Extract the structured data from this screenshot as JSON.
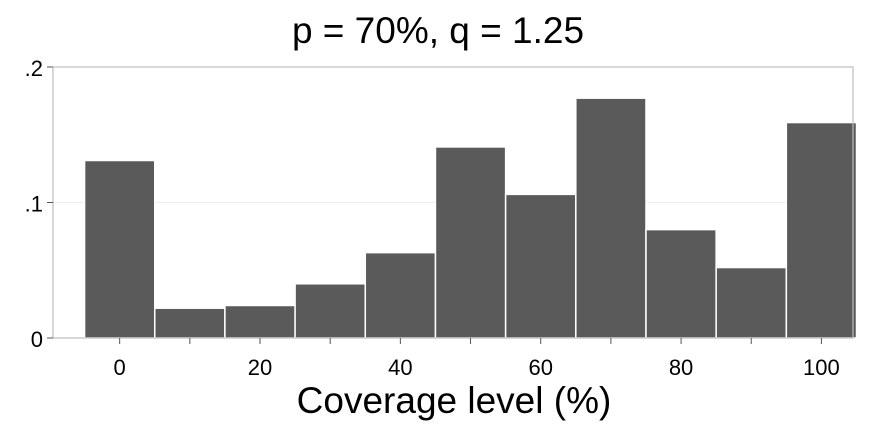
{
  "chart_data": {
    "type": "bar",
    "title": "p = 70%, q = 1.25",
    "xlabel": "Coverage level (%)",
    "ylabel": "",
    "x_ticks": [
      0,
      20,
      40,
      60,
      80,
      100
    ],
    "y_ticks": [
      {
        "value": 0,
        "label": "0"
      },
      {
        "value": 0.1,
        "label": ".1"
      },
      {
        "value": 0.2,
        "label": ".2"
      }
    ],
    "xlim": [
      -9.5,
      104.5
    ],
    "ylim": [
      0,
      0.2
    ],
    "grid": true,
    "bin_width": 10,
    "bins": [
      {
        "x_start": -5,
        "x_end": 5,
        "value": 0.131
      },
      {
        "x_start": 5,
        "x_end": 15,
        "value": 0.022
      },
      {
        "x_start": 15,
        "x_end": 25,
        "value": 0.024
      },
      {
        "x_start": 25,
        "x_end": 35,
        "value": 0.04
      },
      {
        "x_start": 35,
        "x_end": 45,
        "value": 0.063
      },
      {
        "x_start": 45,
        "x_end": 55,
        "value": 0.141
      },
      {
        "x_start": 55,
        "x_end": 65,
        "value": 0.106
      },
      {
        "x_start": 65,
        "x_end": 75,
        "value": 0.177
      },
      {
        "x_start": 75,
        "x_end": 85,
        "value": 0.08
      },
      {
        "x_start": 85,
        "x_end": 95,
        "value": 0.052
      },
      {
        "x_start": 95,
        "x_end": 105,
        "value": 0.159
      }
    ],
    "colors": {
      "bar_fill": "#5a5a5a",
      "bar_stroke": "#ffffff",
      "frame": "#bdbdbd",
      "grid": "#eeeeee"
    }
  }
}
